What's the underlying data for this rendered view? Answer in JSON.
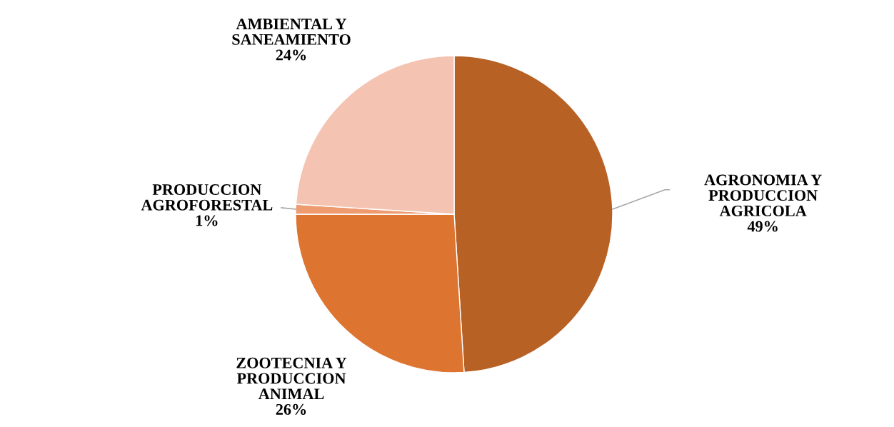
{
  "chart_data": {
    "type": "pie",
    "categories": [
      "AGRONOMIA Y\nPRODUCCION\nAGRICOLA",
      "ZOOTECNIA Y\nPRODUCCION\nANIMAL",
      "PRODUCCION\nAGROFORESTAL",
      "AMBIENTAL Y\nSANEAMIENTO"
    ],
    "values": [
      49,
      26,
      1,
      24
    ],
    "value_labels": [
      "49%",
      "26%",
      "1%",
      "24%"
    ],
    "colors": [
      "#b86125",
      "#dd7430",
      "#ee9b70",
      "#f4c3b2"
    ],
    "legend": false
  }
}
